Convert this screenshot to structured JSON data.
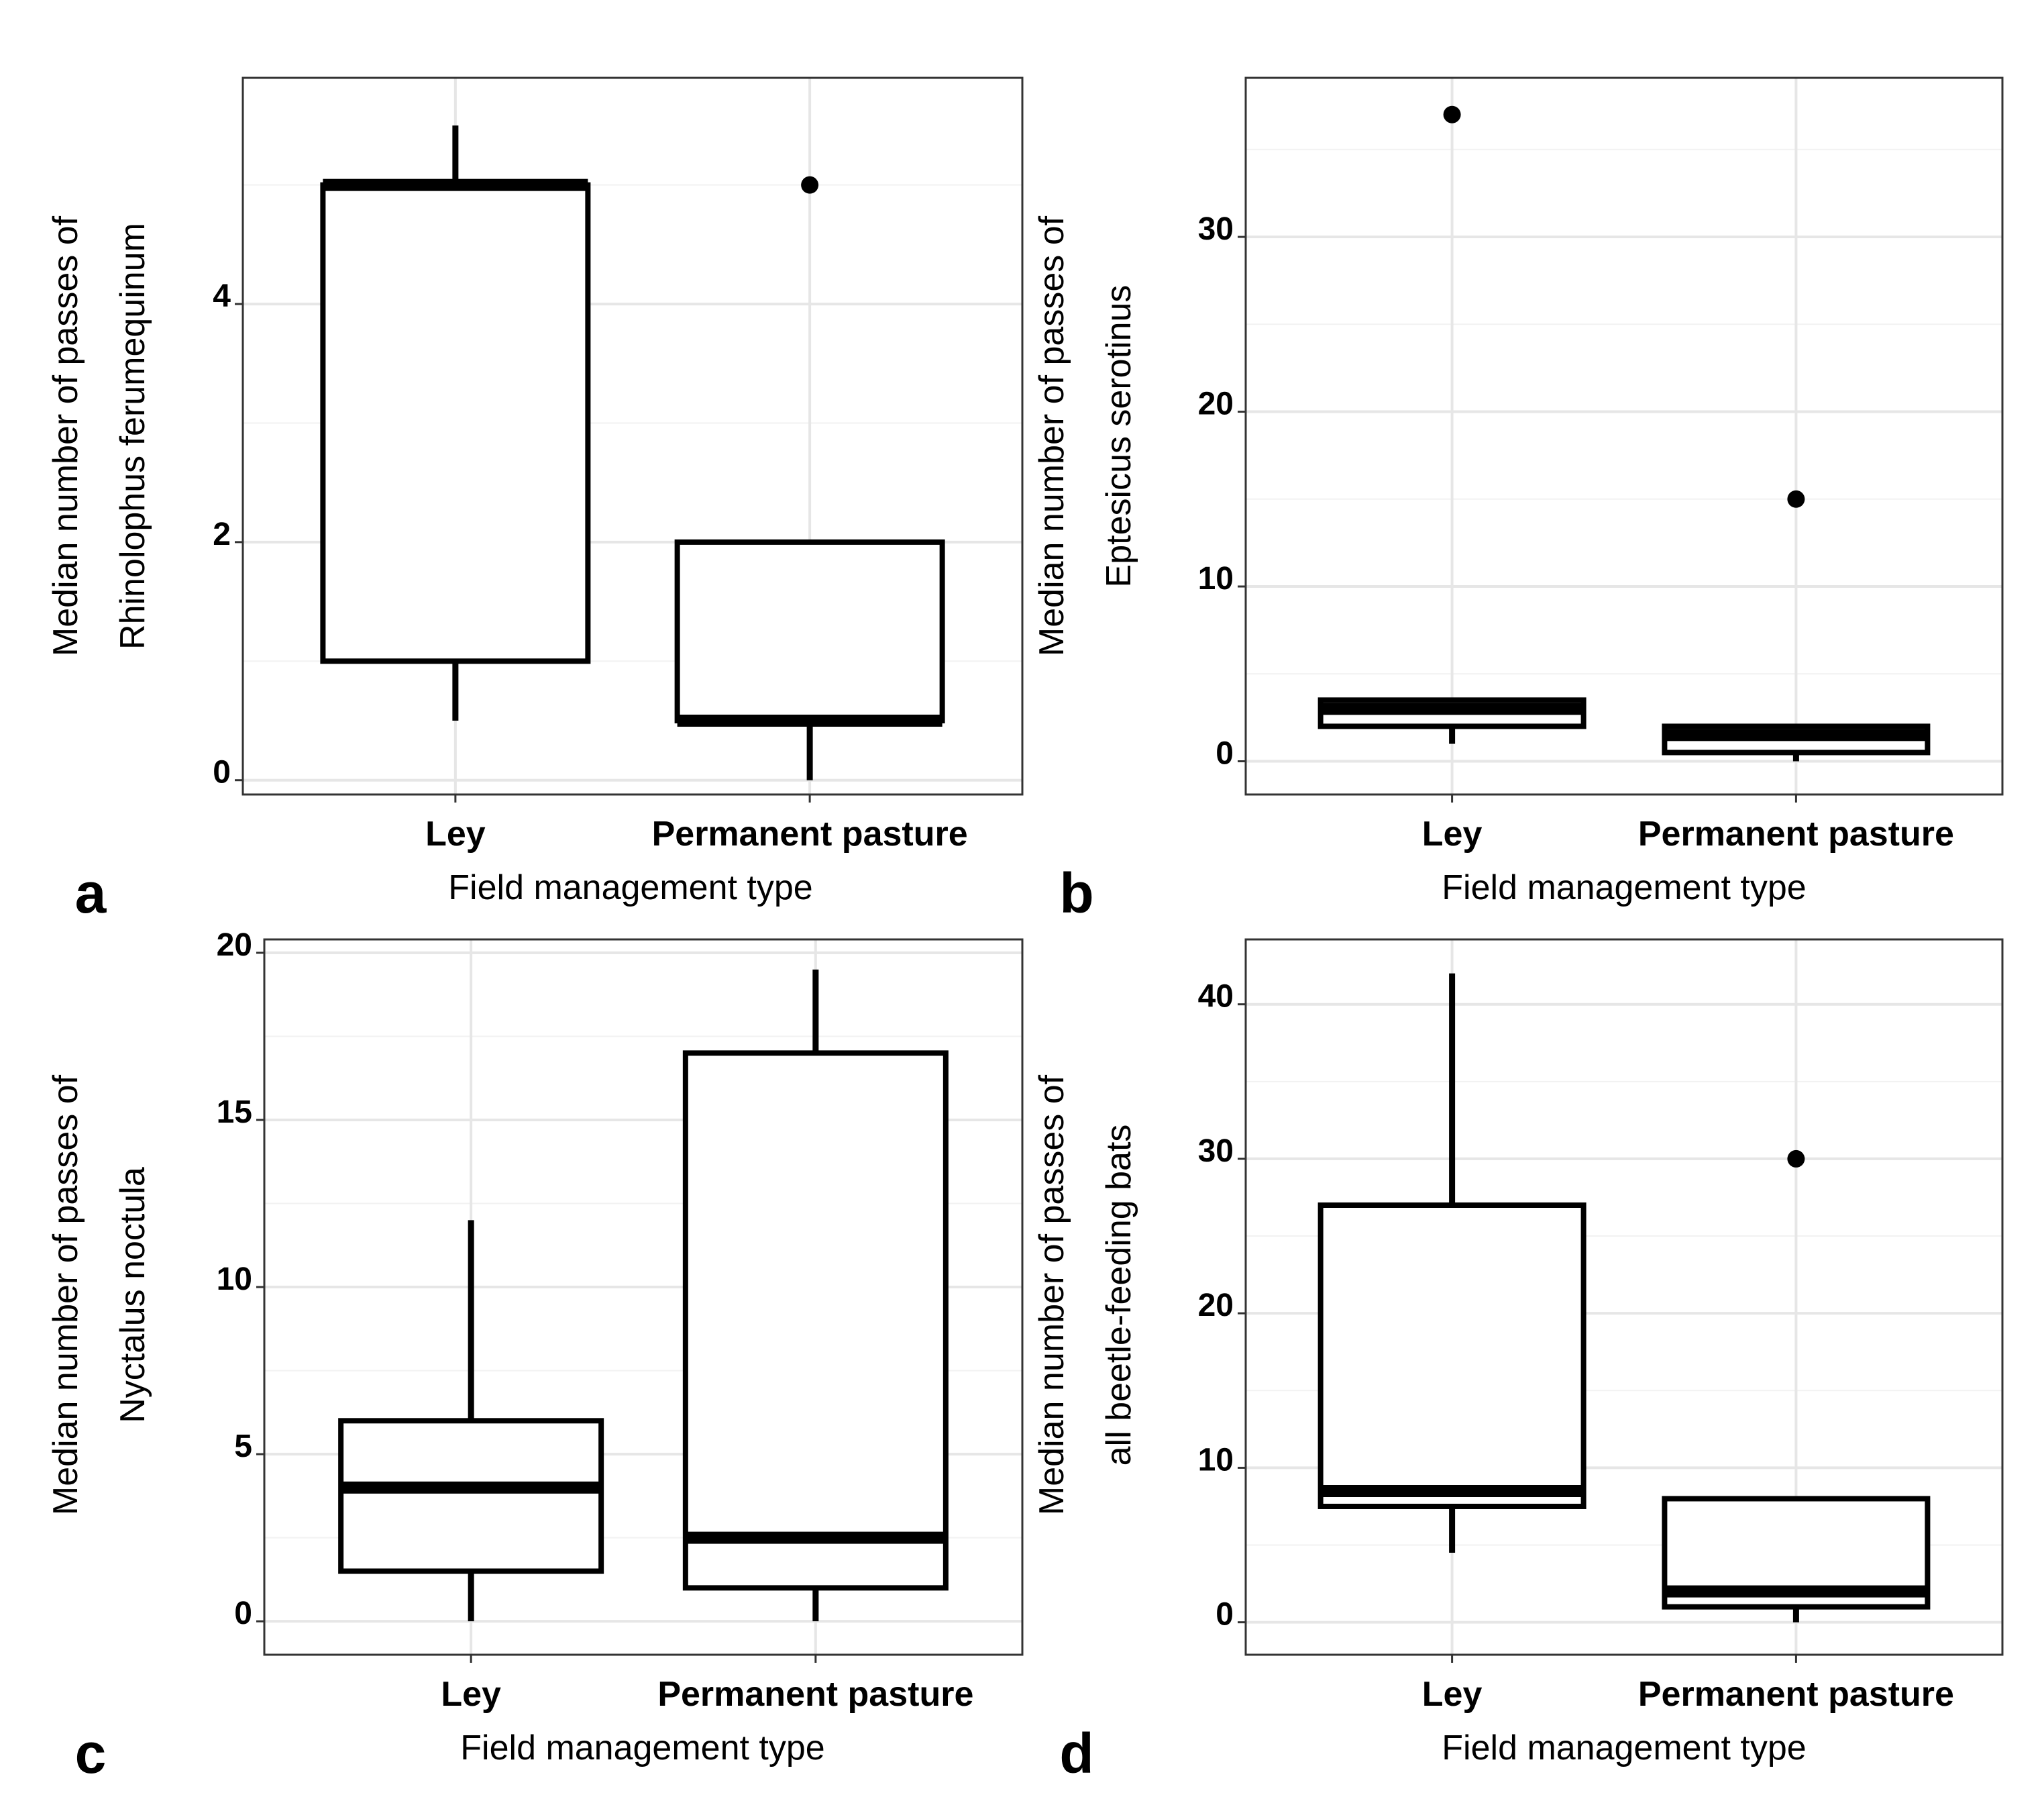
{
  "chart_data": [
    {
      "type": "boxplot",
      "panel_label": "a",
      "ylabel_lines": [
        "Median number of passes of",
        "Rhinolophus ferumequinum"
      ],
      "xlabel": "Field management type",
      "categories": [
        "Ley",
        "Permanent pasture"
      ],
      "ylim": [
        -0.12,
        5.9
      ],
      "yticks": [
        0,
        2,
        4
      ],
      "ytick_labels": [
        "0",
        "2",
        "4"
      ],
      "boxes": [
        {
          "category": "Ley",
          "whisker_low": 0.5,
          "q1": 1,
          "median": 5,
          "q3": 5,
          "whisker_high": 5.5,
          "outliers": []
        },
        {
          "category": "Permanent pasture",
          "whisker_low": 0,
          "q1": 0.5,
          "median": 0.5,
          "q3": 2,
          "whisker_high": 2,
          "outliers": [
            5
          ]
        }
      ]
    },
    {
      "type": "boxplot",
      "panel_label": "b",
      "ylabel_lines": [
        "Median number of passes of",
        "Eptesicus serotinus"
      ],
      "xlabel": "Field management type",
      "categories": [
        "Ley",
        "Permanent pasture"
      ],
      "ylim": [
        -1.9,
        39.1
      ],
      "yticks": [
        0,
        10,
        20,
        30
      ],
      "ytick_labels": [
        "0",
        "10",
        "20",
        "30"
      ],
      "boxes": [
        {
          "category": "Ley",
          "whisker_low": 1,
          "q1": 2,
          "median": 3,
          "q3": 3.5,
          "whisker_high": 3.5,
          "outliers": [
            37
          ]
        },
        {
          "category": "Permanent pasture",
          "whisker_low": 0,
          "q1": 0.5,
          "median": 1.5,
          "q3": 2,
          "whisker_high": 2,
          "outliers": [
            15
          ]
        }
      ]
    },
    {
      "type": "boxplot",
      "panel_label": "c",
      "ylabel_lines": [
        "Median number of passes of",
        "Nyctalus noctula"
      ],
      "xlabel": "Field management type",
      "categories": [
        "Ley",
        "Permanent pasture"
      ],
      "ylim": [
        -1.0,
        20.4
      ],
      "yticks": [
        0,
        5,
        10,
        15,
        20
      ],
      "ytick_labels": [
        "0",
        "5",
        "10",
        "15",
        "20"
      ],
      "boxes": [
        {
          "category": "Ley",
          "whisker_low": 0,
          "q1": 1.5,
          "median": 4,
          "q3": 6,
          "whisker_high": 12,
          "outliers": []
        },
        {
          "category": "Permanent pasture",
          "whisker_low": 0,
          "q1": 1,
          "median": 2.5,
          "q3": 17,
          "whisker_high": 19.5,
          "outliers": []
        }
      ]
    },
    {
      "type": "boxplot",
      "panel_label": "d",
      "ylabel_lines": [
        "Median number of passes of",
        "all beetle-feeding bats"
      ],
      "xlabel": "Field management type",
      "categories": [
        "Ley",
        "Permanent pasture"
      ],
      "ylim": [
        -2.1,
        44.2
      ],
      "yticks": [
        0,
        10,
        20,
        30,
        40
      ],
      "ytick_labels": [
        "0",
        "10",
        "20",
        "30",
        "40"
      ],
      "boxes": [
        {
          "category": "Ley",
          "whisker_low": 4.5,
          "q1": 7.5,
          "median": 8.5,
          "q3": 27,
          "whisker_high": 42,
          "outliers": []
        },
        {
          "category": "Permanent pasture",
          "whisker_low": 0,
          "q1": 1,
          "median": 2,
          "q3": 8,
          "whisker_high": 8,
          "outliers": [
            30
          ]
        }
      ]
    }
  ]
}
